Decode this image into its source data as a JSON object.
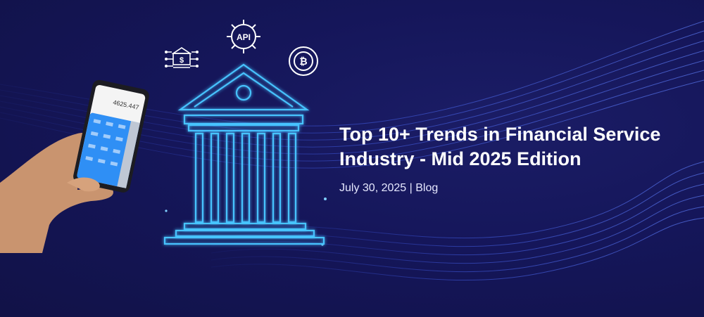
{
  "article": {
    "title_line1": "Top 10+ Trends in Financial Service",
    "title_line2": "Industry - Mid 2025 Edition",
    "date": "July 30, 2025",
    "separator": " | ",
    "category": "Blog"
  },
  "icons": {
    "api_gear": {
      "name": "api-gear-icon",
      "text": "API"
    },
    "bitcoin": {
      "name": "bitcoin-icon"
    },
    "bank_chip": {
      "name": "bank-circuit-icon",
      "symbol": "$"
    }
  },
  "phone": {
    "display": "4625.447"
  },
  "colors": {
    "background": "#14154f",
    "accent_glow": "#3fb6ff",
    "wave": "#3b55d6",
    "phone_keypad": "#2f8ff5"
  }
}
